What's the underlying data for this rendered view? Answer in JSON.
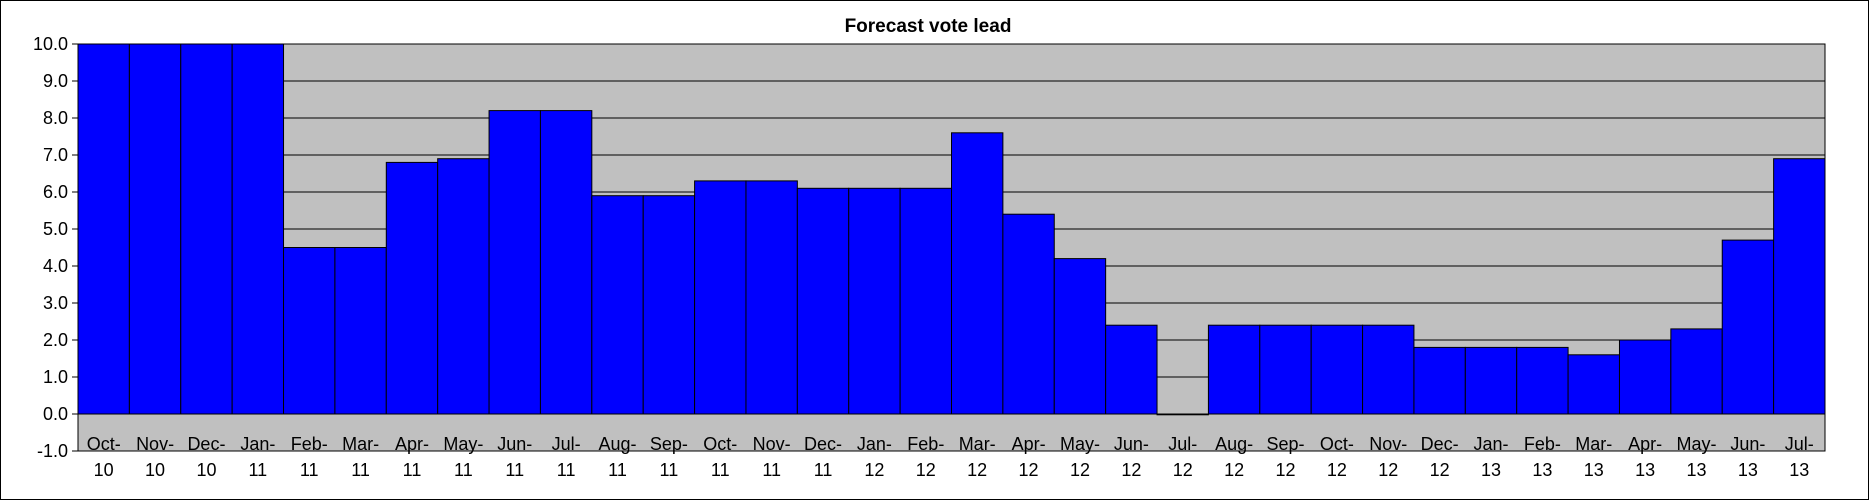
{
  "chart_data": {
    "type": "bar",
    "title": "Forecast vote lead",
    "xlabel": "",
    "ylabel": "",
    "ylim": [
      -1.0,
      10.0
    ],
    "yticks": [
      "-1.0",
      "0.0",
      "1.0",
      "2.0",
      "3.0",
      "4.0",
      "5.0",
      "6.0",
      "7.0",
      "8.0",
      "9.0",
      "10.0"
    ],
    "grid": true,
    "legend": "none",
    "categories": [
      [
        "Oct-",
        "10"
      ],
      [
        "Nov-",
        "10"
      ],
      [
        "Dec-",
        "10"
      ],
      [
        "Jan-",
        "11"
      ],
      [
        "Feb-",
        "11"
      ],
      [
        "Mar-",
        "11"
      ],
      [
        "Apr-",
        "11"
      ],
      [
        "May-",
        "11"
      ],
      [
        "Jun-",
        "11"
      ],
      [
        "Jul-",
        "11"
      ],
      [
        "Aug-",
        "11"
      ],
      [
        "Sep-",
        "11"
      ],
      [
        "Oct-",
        "11"
      ],
      [
        "Nov-",
        "11"
      ],
      [
        "Dec-",
        "11"
      ],
      [
        "Jan-",
        "12"
      ],
      [
        "Feb-",
        "12"
      ],
      [
        "Mar-",
        "12"
      ],
      [
        "Apr-",
        "12"
      ],
      [
        "May-",
        "12"
      ],
      [
        "Jun-",
        "12"
      ],
      [
        "Jul-",
        "12"
      ],
      [
        "Aug-",
        "12"
      ],
      [
        "Sep-",
        "12"
      ],
      [
        "Oct-",
        "12"
      ],
      [
        "Nov-",
        "12"
      ],
      [
        "Dec-",
        "12"
      ],
      [
        "Jan-",
        "13"
      ],
      [
        "Feb-",
        "13"
      ],
      [
        "Mar-",
        "13"
      ],
      [
        "Apr-",
        "13"
      ],
      [
        "May-",
        "13"
      ],
      [
        "Jun-",
        "13"
      ],
      [
        "Jul-",
        "13"
      ]
    ],
    "values": [
      10.0,
      10.0,
      10.0,
      10.0,
      4.5,
      4.5,
      6.8,
      6.9,
      8.2,
      8.2,
      5.9,
      5.9,
      6.3,
      6.3,
      6.1,
      6.1,
      6.1,
      7.6,
      5.4,
      4.2,
      2.4,
      0.0,
      2.4,
      2.4,
      2.4,
      2.4,
      1.8,
      1.8,
      1.8,
      1.6,
      2.0,
      2.3,
      4.7,
      6.9
    ],
    "colors": {
      "bar": "#0000FF",
      "plot_background": "#C0C0C0",
      "gridline": "#000000",
      "outline": "#000000"
    }
  }
}
